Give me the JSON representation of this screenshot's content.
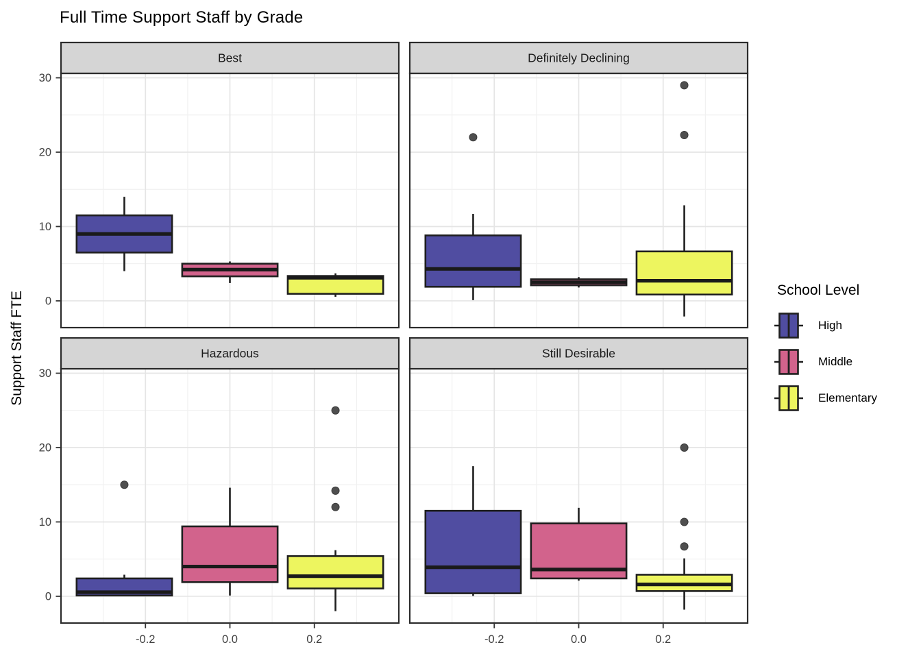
{
  "title": "Full Time Support Staff by Grade",
  "ylabel": "Support Staff FTE",
  "legend": {
    "title": "School Level",
    "items": [
      {
        "label": "High",
        "color": "#504DA1"
      },
      {
        "label": "Middle",
        "color": "#D2638C"
      },
      {
        "label": "Elementary",
        "color": "#EDF55F"
      }
    ]
  },
  "chart_data": {
    "type": "boxplot",
    "title": "Full Time Support Staff by Grade",
    "xlabel": "",
    "ylabel": "Support Staff FTE",
    "facet_layout": "2x2",
    "xlim": [
      -0.4,
      0.4
    ],
    "ylim": [
      -3.6,
      30.6
    ],
    "x_ticks": [
      {
        "value": -0.2,
        "label": "-0.2"
      },
      {
        "value": 0.0,
        "label": "0.0"
      },
      {
        "value": 0.2,
        "label": "0.2"
      }
    ],
    "y_ticks": [
      {
        "value": 0,
        "label": "0"
      },
      {
        "value": 10,
        "label": "10"
      },
      {
        "value": 20,
        "label": "20"
      },
      {
        "value": 30,
        "label": "30"
      }
    ],
    "x_minor": [
      -0.3,
      -0.1,
      0.1,
      0.3
    ],
    "y_minor": [
      5,
      15,
      25
    ],
    "grid": true,
    "legend_position": "right",
    "groups": [
      {
        "name": "High",
        "x": -0.25,
        "fill": "#504DA1"
      },
      {
        "name": "Middle",
        "x": 0.0,
        "fill": "#D2638C"
      },
      {
        "name": "Elementary",
        "x": 0.25,
        "fill": "#EDF55F"
      }
    ],
    "box_width": 0.226,
    "facets": [
      {
        "label": "Best",
        "row": 0,
        "col": 0,
        "boxes": [
          {
            "group": "High",
            "whislo": 4.0,
            "q1": 6.5,
            "med": 9.0,
            "q3": 11.5,
            "whishi": 14.0,
            "outliers": []
          },
          {
            "group": "Middle",
            "whislo": 2.4,
            "q1": 3.3,
            "med": 4.2,
            "q3": 5.0,
            "whishi": 5.3,
            "outliers": []
          },
          {
            "group": "Elementary",
            "whislo": 0.55,
            "q1": 0.95,
            "med": 3.1,
            "q3": 3.35,
            "whishi": 3.7,
            "outliers": []
          }
        ]
      },
      {
        "label": "Definitely Declining",
        "row": 0,
        "col": 1,
        "boxes": [
          {
            "group": "High",
            "whislo": 0.1,
            "q1": 1.9,
            "med": 4.3,
            "q3": 8.8,
            "whishi": 11.7,
            "outliers": [
              22
            ]
          },
          {
            "group": "Middle",
            "whislo": 1.8,
            "q1": 2.1,
            "med": 2.5,
            "q3": 2.9,
            "whishi": 3.2,
            "outliers": []
          },
          {
            "group": "Elementary",
            "whislo": -2.1,
            "q1": 0.85,
            "med": 2.7,
            "q3": 6.65,
            "whishi": 12.85,
            "outliers": [
              29,
              22.3
            ]
          }
        ]
      },
      {
        "label": "Hazardous",
        "row": 1,
        "col": 0,
        "boxes": [
          {
            "group": "High",
            "whislo": 0.0,
            "q1": 0.1,
            "med": 0.55,
            "q3": 2.4,
            "whishi": 2.9,
            "outliers": [
              15
            ]
          },
          {
            "group": "Middle",
            "whislo": 0.1,
            "q1": 1.9,
            "med": 4.0,
            "q3": 9.4,
            "whishi": 14.6,
            "outliers": []
          },
          {
            "group": "Elementary",
            "whislo": -2.0,
            "q1": 1.05,
            "med": 2.7,
            "q3": 5.4,
            "whishi": 6.2,
            "outliers": [
              25,
              14.2,
              12
            ]
          }
        ]
      },
      {
        "label": "Still Desirable",
        "row": 1,
        "col": 1,
        "boxes": [
          {
            "group": "High",
            "whislo": 0.05,
            "q1": 0.4,
            "med": 3.9,
            "q3": 11.5,
            "whishi": 17.5,
            "outliers": []
          },
          {
            "group": "Middle",
            "whislo": 2.1,
            "q1": 2.4,
            "med": 3.6,
            "q3": 9.8,
            "whishi": 11.9,
            "outliers": []
          },
          {
            "group": "Elementary",
            "whislo": -1.8,
            "q1": 0.7,
            "med": 1.6,
            "q3": 2.9,
            "whishi": 5.1,
            "outliers": [
              20,
              10,
              6.7
            ]
          }
        ]
      }
    ],
    "colors": {
      "box_border": "#1F1F1F",
      "median": "#1A1A1A",
      "whisker": "#1F1F1F",
      "outlier": "#4F4F4F",
      "strip_fill": "#D5D5D5",
      "strip_border": "#2B2B2B",
      "panel_border": "#2B2B2B",
      "grid_major": "#E5E5E5",
      "grid_minor": "#F1F1F1",
      "axis_text": "#404040",
      "tick": "#333333",
      "background": "#FFFFFF"
    }
  }
}
